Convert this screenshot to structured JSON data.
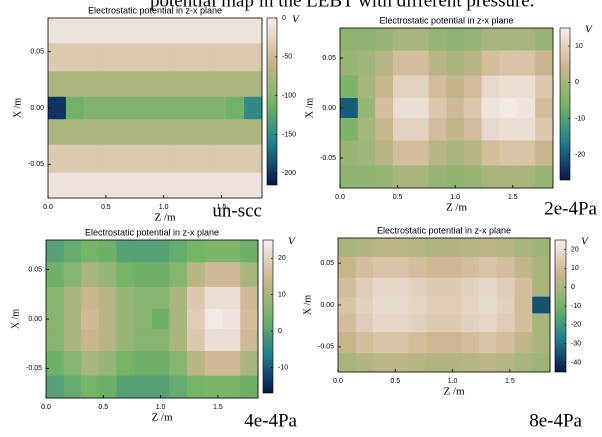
{
  "caption": "potential map in the LEBT with different pressure.",
  "chart_data": [
    {
      "type": "heatmap",
      "title": "Electrostatic potential in z-x plane",
      "xlabel": "Z  /m",
      "ylabel": "X /m",
      "colorbar_label": "V",
      "label": "un-scc",
      "x": [
        0.08,
        0.23,
        0.38,
        0.54,
        0.69,
        0.85,
        1.0,
        1.15,
        1.31,
        1.46,
        1.62,
        1.77
      ],
      "y": [
        0.07,
        0.045,
        0.02,
        0,
        -0.02,
        -0.045,
        -0.07
      ],
      "z": [
        [
          -10,
          -10,
          -10,
          -10,
          -10,
          -10,
          -10,
          -10,
          -10,
          -10,
          -10,
          -10
        ],
        [
          -35,
          -35,
          -35,
          -35,
          -35,
          -35,
          -35,
          -35,
          -35,
          -35,
          -35,
          -35
        ],
        [
          -75,
          -75,
          -75,
          -75,
          -75,
          -75,
          -75,
          -75,
          -75,
          -75,
          -75,
          -75
        ],
        [
          -200,
          -110,
          -100,
          -100,
          -100,
          -100,
          -100,
          -100,
          -100,
          -100,
          -110,
          -150
        ],
        [
          -75,
          -75,
          -75,
          -75,
          -75,
          -75,
          -75,
          -75,
          -75,
          -75,
          -75,
          -75
        ],
        [
          -35,
          -35,
          -35,
          -35,
          -35,
          -35,
          -35,
          -35,
          -35,
          -35,
          -35,
          -35
        ],
        [
          -10,
          -10,
          -10,
          -10,
          -10,
          -10,
          -10,
          -10,
          -10,
          -10,
          -10,
          -10
        ]
      ],
      "xlim": [
        0,
        1.85
      ],
      "ylim": [
        -0.08,
        0.08
      ],
      "clim": [
        -215,
        0
      ],
      "xticks": [
        {
          "value": 0,
          "label": "0.0"
        },
        {
          "value": 0.5,
          "label": "0.5"
        },
        {
          "value": 1,
          "label": "1.0"
        },
        {
          "value": 1.5,
          "label": "1.5"
        }
      ],
      "yticks": [
        0.05,
        {
          "value": 0,
          "label": "0.00"
        },
        -0.05
      ],
      "cticks": [
        0,
        -50,
        -100,
        -150,
        -200
      ],
      "colorscale": [
        "#0b1650",
        "#1f7f8e",
        "#76b565",
        "#cdb58f",
        "#f6eeee"
      ]
    },
    {
      "type": "heatmap",
      "title": "Electrostatic potential in z-x plane",
      "xlabel": "Z  /m",
      "ylabel": "X /m",
      "colorbar_label": "V",
      "label": "2e-4Pa",
      "x": [
        0.08,
        0.23,
        0.38,
        0.54,
        0.69,
        0.85,
        1.0,
        1.15,
        1.31,
        1.46,
        1.62,
        1.77
      ],
      "y": [
        0.07,
        0.045,
        0.02,
        0,
        -0.02,
        -0.045,
        -0.07
      ],
      "z": [
        [
          -3,
          -3,
          -2,
          0,
          0,
          -2,
          -3,
          -2,
          0,
          0,
          0,
          -2
        ],
        [
          -2,
          -1,
          2,
          6,
          6,
          2,
          0,
          2,
          6,
          7,
          7,
          4
        ],
        [
          -5,
          0,
          4,
          10,
          10,
          6,
          3,
          6,
          11,
          12,
          12,
          8
        ],
        [
          -20,
          -2,
          6,
          12,
          12,
          8,
          5,
          8,
          13,
          14,
          13,
          6
        ],
        [
          -5,
          0,
          4,
          10,
          10,
          6,
          3,
          6,
          11,
          12,
          12,
          8
        ],
        [
          -2,
          -1,
          2,
          6,
          6,
          2,
          0,
          2,
          6,
          7,
          7,
          4
        ],
        [
          -3,
          -3,
          -2,
          0,
          0,
          -2,
          -3,
          -2,
          0,
          0,
          0,
          -2
        ]
      ],
      "xlim": [
        0,
        1.85
      ],
      "ylim": [
        -0.08,
        0.08
      ],
      "clim": [
        -27,
        15
      ],
      "xticks": [
        {
          "value": 0,
          "label": "0.0"
        },
        {
          "value": 0.5,
          "label": "0.5"
        },
        {
          "value": 1,
          "label": "1.0"
        },
        {
          "value": 1.5,
          "label": "1.5"
        }
      ],
      "yticks": [
        0.05,
        {
          "value": 0,
          "label": "0.00"
        },
        -0.05
      ],
      "cticks": [
        10,
        0,
        -10,
        -20
      ],
      "colorscale": [
        "#0b1650",
        "#1f7f8e",
        "#76b565",
        "#cdb58f",
        "#f6eeee"
      ]
    },
    {
      "type": "heatmap",
      "title": "Electrostatic potential in z-x plane",
      "xlabel": "Z  /m",
      "ylabel": "X /m",
      "colorbar_label": "V",
      "label": "4e-4Pa",
      "x": [
        0.08,
        0.23,
        0.38,
        0.54,
        0.69,
        0.85,
        1.0,
        1.15,
        1.31,
        1.46,
        1.62,
        1.77
      ],
      "y": [
        0.07,
        0.045,
        0.02,
        0,
        -0.02,
        -0.045,
        -0.07
      ],
      "z": [
        [
          0,
          2,
          4,
          3,
          0,
          0,
          0,
          2,
          4,
          5,
          5,
          3
        ],
        [
          3,
          6,
          10,
          8,
          4,
          3,
          3,
          6,
          12,
          15,
          15,
          10
        ],
        [
          6,
          10,
          14,
          12,
          8,
          6,
          6,
          10,
          18,
          22,
          22,
          15
        ],
        [
          6,
          10,
          15,
          12,
          8,
          6,
          3,
          10,
          19,
          24,
          23,
          16
        ],
        [
          6,
          10,
          14,
          12,
          8,
          6,
          6,
          10,
          18,
          22,
          22,
          15
        ],
        [
          3,
          6,
          10,
          8,
          4,
          3,
          3,
          6,
          12,
          15,
          15,
          10
        ],
        [
          0,
          2,
          4,
          3,
          0,
          0,
          0,
          2,
          4,
          5,
          5,
          3
        ]
      ],
      "xlim": [
        0,
        1.85
      ],
      "ylim": [
        -0.08,
        0.08
      ],
      "clim": [
        -17,
        25
      ],
      "xticks": [
        {
          "value": 0,
          "label": "0.0"
        },
        {
          "value": 0.5,
          "label": "0.5"
        },
        {
          "value": 1,
          "label": "1.0"
        },
        {
          "value": 1.5,
          "label": "1.5"
        }
      ],
      "yticks": [
        0.05,
        {
          "value": 0,
          "label": "0.00"
        },
        -0.05
      ],
      "cticks": [
        20,
        10,
        0,
        -10
      ],
      "colorscale": [
        "#0b1650",
        "#1f7f8e",
        "#76b565",
        "#cdb58f",
        "#f6eeee"
      ]
    },
    {
      "type": "heatmap",
      "title": "Electrostatic potential in z-x plane",
      "xlabel": "Z  /m",
      "ylabel": "X /m",
      "colorbar_label": "V",
      "label": "8e-4Pa",
      "x": [
        0.08,
        0.23,
        0.38,
        0.54,
        0.69,
        0.85,
        1.0,
        1.15,
        1.31,
        1.46,
        1.62,
        1.77
      ],
      "y": [
        0.07,
        0.045,
        0.02,
        0,
        -0.02,
        -0.045,
        -0.07
      ],
      "z": [
        [
          0,
          2,
          4,
          4,
          3,
          2,
          2,
          3,
          4,
          3,
          0,
          -2
        ],
        [
          6,
          10,
          12,
          12,
          10,
          8,
          8,
          10,
          12,
          10,
          5,
          0
        ],
        [
          10,
          15,
          18,
          18,
          16,
          14,
          14,
          16,
          18,
          15,
          10,
          0
        ],
        [
          12,
          16,
          19,
          19,
          17,
          15,
          15,
          17,
          19,
          16,
          10,
          -35
        ],
        [
          10,
          15,
          18,
          18,
          16,
          14,
          14,
          16,
          18,
          15,
          10,
          0
        ],
        [
          6,
          10,
          12,
          12,
          10,
          8,
          8,
          10,
          12,
          10,
          5,
          0
        ],
        [
          0,
          2,
          4,
          4,
          3,
          2,
          2,
          3,
          4,
          3,
          0,
          -2
        ]
      ],
      "xlim": [
        0,
        1.85
      ],
      "ylim": [
        -0.08,
        0.08
      ],
      "clim": [
        -45,
        25
      ],
      "xticks": [
        {
          "value": 0,
          "label": "0.0"
        },
        {
          "value": 0.5,
          "label": "0.5"
        },
        {
          "value": 1,
          "label": "1.0"
        },
        {
          "value": 1.5,
          "label": "1.5"
        }
      ],
      "yticks": [
        0.05,
        {
          "value": 0,
          "label": "0.00"
        },
        -0.05
      ],
      "cticks": [
        20,
        10,
        0,
        -10,
        -20,
        -30,
        -40
      ],
      "colorscale": [
        "#0b1650",
        "#1f7f8e",
        "#76b565",
        "#cdb58f",
        "#f6eeee"
      ]
    }
  ]
}
